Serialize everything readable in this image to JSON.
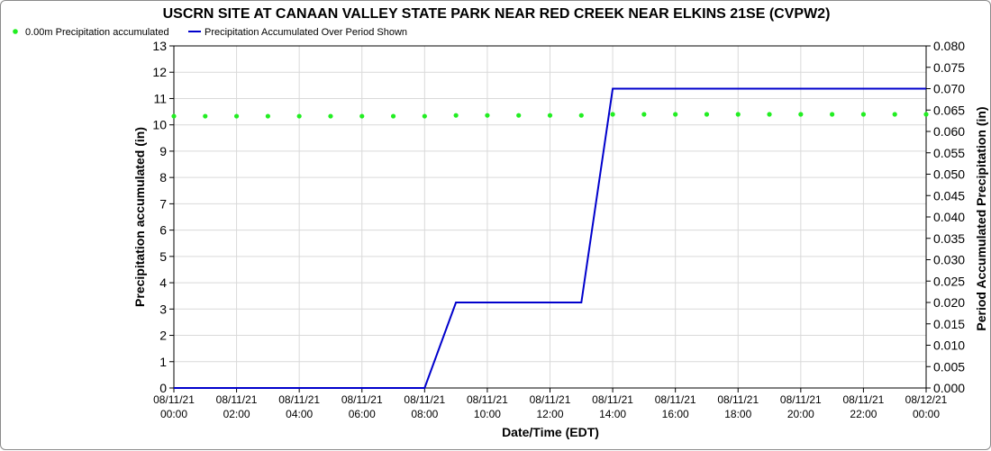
{
  "chart_data": {
    "type": "line",
    "title": "USCRN SITE AT CANAAN VALLEY STATE PARK NEAR RED CREEK NEAR ELKINS 21SE (CVPW2)",
    "xlabel": "Date/Time (EDT)",
    "ylabel_left": "Precipitation accumulated (in)",
    "ylabel_right": "Period Accumulated Precipitation (in)",
    "ylim_left": [
      0,
      13
    ],
    "ylim_right": [
      0,
      0.08
    ],
    "yticks_left": [
      "0",
      "1",
      "2",
      "3",
      "4",
      "5",
      "6",
      "7",
      "8",
      "9",
      "10",
      "11",
      "12",
      "13"
    ],
    "yticks_right": [
      "0.000",
      "0.005",
      "0.010",
      "0.015",
      "0.020",
      "0.025",
      "0.030",
      "0.035",
      "0.040",
      "0.045",
      "0.050",
      "0.055",
      "0.060",
      "0.065",
      "0.070",
      "0.075",
      "0.080"
    ],
    "x_range_hours": [
      0,
      24
    ],
    "x_ticks": [
      {
        "hour": 0,
        "date": "08/11/21",
        "time": "00:00"
      },
      {
        "hour": 2,
        "date": "08/11/21",
        "time": "02:00"
      },
      {
        "hour": 4,
        "date": "08/11/21",
        "time": "04:00"
      },
      {
        "hour": 6,
        "date": "08/11/21",
        "time": "06:00"
      },
      {
        "hour": 8,
        "date": "08/11/21",
        "time": "08:00"
      },
      {
        "hour": 10,
        "date": "08/11/21",
        "time": "10:00"
      },
      {
        "hour": 12,
        "date": "08/11/21",
        "time": "12:00"
      },
      {
        "hour": 14,
        "date": "08/11/21",
        "time": "14:00"
      },
      {
        "hour": 16,
        "date": "08/11/21",
        "time": "16:00"
      },
      {
        "hour": 18,
        "date": "08/11/21",
        "time": "18:00"
      },
      {
        "hour": 20,
        "date": "08/11/21",
        "time": "20:00"
      },
      {
        "hour": 22,
        "date": "08/11/21",
        "time": "22:00"
      },
      {
        "hour": 24,
        "date": "08/12/21",
        "time": "00:00"
      }
    ],
    "grid": true,
    "legend_position": "top-left",
    "series": [
      {
        "name": "0.00m Precipitation accumulated",
        "axis": "left",
        "style": "markers",
        "color": "#22ee22",
        "x": [
          0,
          1,
          2,
          3,
          4,
          5,
          6,
          7,
          8,
          9,
          10,
          11,
          12,
          13,
          14,
          15,
          16,
          17,
          18,
          19,
          20,
          21,
          22,
          23,
          24
        ],
        "values": [
          10.33,
          10.33,
          10.33,
          10.33,
          10.33,
          10.33,
          10.33,
          10.33,
          10.33,
          10.36,
          10.36,
          10.36,
          10.36,
          10.36,
          10.4,
          10.4,
          10.4,
          10.4,
          10.4,
          10.4,
          10.4,
          10.4,
          10.4,
          10.4,
          10.4
        ]
      },
      {
        "name": "Precipitation Accumulated Over Period Shown",
        "axis": "right",
        "style": "line",
        "color": "#0000cc",
        "x": [
          0,
          8,
          9,
          13,
          14,
          24
        ],
        "values": [
          0,
          0,
          0.02,
          0.02,
          0.07,
          0.07
        ]
      }
    ]
  }
}
